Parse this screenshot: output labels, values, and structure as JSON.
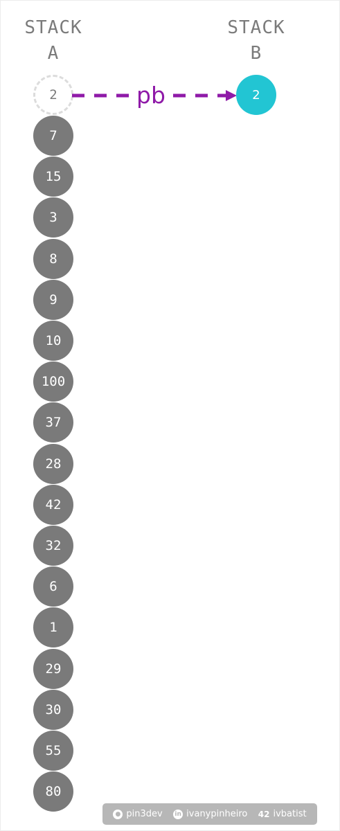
{
  "stack_a": {
    "title_line1": "STACK",
    "title_line2": "A",
    "popped_value": "2",
    "values": [
      "7",
      "15",
      "3",
      "8",
      "9",
      "10",
      "100",
      "37",
      "28",
      "42",
      "32",
      "6",
      "1",
      "29",
      "30",
      "55",
      "80"
    ]
  },
  "stack_b": {
    "title_line1": "STACK",
    "title_line2": "B",
    "values": [
      "2"
    ]
  },
  "operation": {
    "label": "pb",
    "color": "#8f1aa8"
  },
  "colors": {
    "stack_a_node": "#7a7a7a",
    "stack_b_node": "#22c5d3",
    "title": "#7b7b7b"
  },
  "footer": {
    "github": {
      "icon": "github-icon",
      "label": "pin3dev"
    },
    "linkedin": {
      "icon": "linkedin-icon",
      "label": "ivanypinheiro"
    },
    "intra42": {
      "icon": "school-42-icon",
      "label": "ivbatist"
    }
  }
}
